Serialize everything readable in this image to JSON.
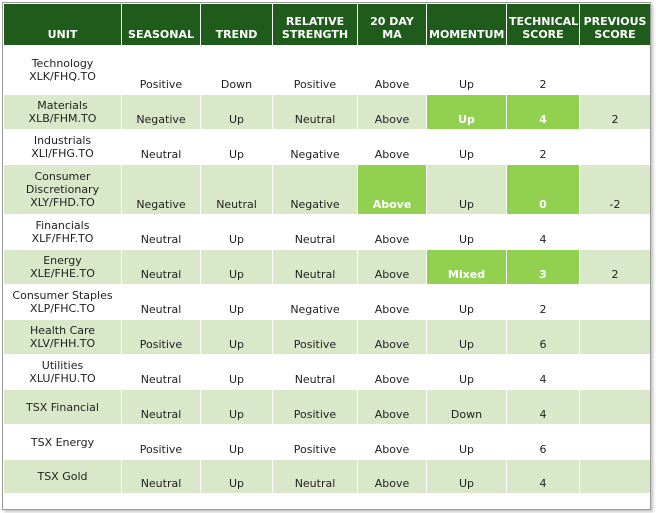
{
  "headers": [
    {
      "line1": "UNIT",
      "line2": ""
    },
    {
      "line1": "SEASONAL",
      "line2": ""
    },
    {
      "line1": "TREND",
      "line2": ""
    },
    {
      "line1": "RELATIVE",
      "line2": "STRENGTH"
    },
    {
      "line1": "20 DAY",
      "line2": "MA"
    },
    {
      "line1": "MOMENTUM",
      "line2": ""
    },
    {
      "line1": "TECHNICAL",
      "line2": "SCORE"
    },
    {
      "line1": "PREVIOUS",
      "line2": "SCORE"
    }
  ],
  "rows": [
    {
      "unit": [
        "Technology",
        "XLK/FHQ.TO"
      ],
      "seasonal": "Positive",
      "trend": "Down",
      "relative_strength": "Positive",
      "ma20": "Above",
      "momentum": "Up",
      "technical_score": "2",
      "previous_score": ""
    },
    {
      "unit": [
        "Materials",
        "XLB/FHM.TO"
      ],
      "seasonal": "Negative",
      "trend": "Up",
      "relative_strength": "Neutral",
      "ma20": "Above",
      "momentum": "Up",
      "technical_score": "4",
      "previous_score": "2"
    },
    {
      "unit": [
        "Industrials",
        "XLI/FHG.TO"
      ],
      "seasonal": "Neutral",
      "trend": "Up",
      "relative_strength": "Negative",
      "ma20": "Above",
      "momentum": "Up",
      "technical_score": "2",
      "previous_score": ""
    },
    {
      "unit": [
        "Consumer",
        "Discretionary",
        "XLY/FHD.TO"
      ],
      "seasonal": "Negative",
      "trend": "Neutral",
      "relative_strength": "Negative",
      "ma20": "Above",
      "momentum": "Up",
      "technical_score": "0",
      "previous_score": "-2"
    },
    {
      "unit": [
        "Financials",
        "XLF/FHF.TO"
      ],
      "seasonal": "Neutral",
      "trend": "Up",
      "relative_strength": "Neutral",
      "ma20": "Above",
      "momentum": "Up",
      "technical_score": "4",
      "previous_score": ""
    },
    {
      "unit": [
        "Energy",
        "XLE/FHE.TO"
      ],
      "seasonal": "Neutral",
      "trend": "Up",
      "relative_strength": "Neutral",
      "ma20": "Above",
      "momentum": "Mixed",
      "technical_score": "3",
      "previous_score": "2"
    },
    {
      "unit": [
        "Consumer Staples",
        "XLP/FHC.TO"
      ],
      "seasonal": "Neutral",
      "trend": "Up",
      "relative_strength": "Negative",
      "ma20": "Above",
      "momentum": "Up",
      "technical_score": "2",
      "previous_score": ""
    },
    {
      "unit": [
        "Health Care",
        "XLV/FHH.TO"
      ],
      "seasonal": "Positive",
      "trend": "Up",
      "relative_strength": "Positive",
      "ma20": "Above",
      "momentum": "Up",
      "technical_score": "6",
      "previous_score": ""
    },
    {
      "unit": [
        "Utilities",
        "XLU/FHU.TO"
      ],
      "seasonal": "Neutral",
      "trend": "Up",
      "relative_strength": "Neutral",
      "ma20": "Above",
      "momentum": "Up",
      "technical_score": "4",
      "previous_score": ""
    },
    {
      "unit": [
        "TSX Financial"
      ],
      "seasonal": "Neutral",
      "trend": "Up",
      "relative_strength": "Positive",
      "ma20": "Above",
      "momentum": "Down",
      "technical_score": "4",
      "previous_score": ""
    },
    {
      "unit": [
        "TSX Energy"
      ],
      "seasonal": "Positive",
      "trend": "Up",
      "relative_strength": "Positive",
      "ma20": "Above",
      "momentum": "Up",
      "technical_score": "6",
      "previous_score": ""
    },
    {
      "unit": [
        "TSX Gold"
      ],
      "seasonal": "Neutral",
      "trend": "Up",
      "relative_strength": "Neutral",
      "ma20": "Above",
      "momentum": "Up",
      "technical_score": "4",
      "previous_score": ""
    }
  ],
  "highlights": {
    "1": [
      "momentum",
      "technical_score"
    ],
    "3": [
      "ma20",
      "technical_score"
    ],
    "5": [
      "momentum",
      "technical_score"
    ]
  },
  "colors": {
    "header_bg": "#1f5c1c",
    "band_bg": "#d9e8c8",
    "highlight_bg": "#92d050"
  }
}
